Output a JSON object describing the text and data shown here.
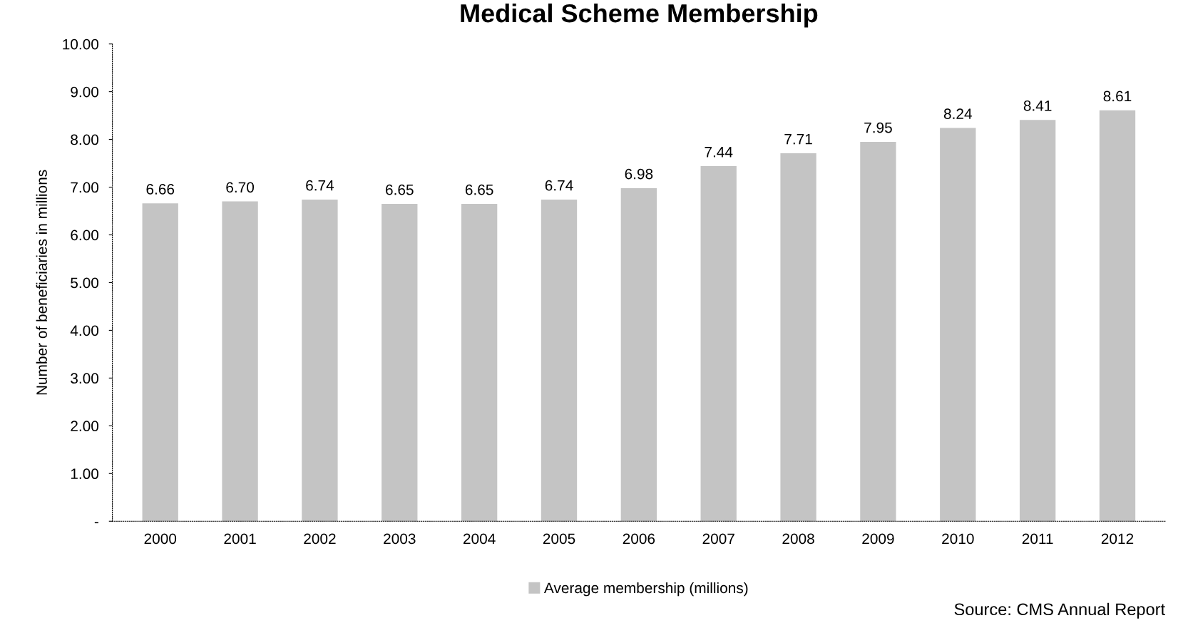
{
  "chart_data": {
    "type": "bar",
    "title": "Medical Scheme Membership",
    "ylabel": "Number of beneficiaries in millions",
    "categories": [
      "2000",
      "2001",
      "2002",
      "2003",
      "2004",
      "2005",
      "2006",
      "2007",
      "2008",
      "2009",
      "2010",
      "2011",
      "2012"
    ],
    "series": [
      {
        "name": "Average membership (millions)",
        "color": "#c4c4c4",
        "values": [
          6.66,
          6.7,
          6.74,
          6.65,
          6.65,
          6.74,
          6.98,
          7.44,
          7.71,
          7.95,
          8.24,
          8.41,
          8.61
        ]
      }
    ],
    "value_labels": [
      "6.66",
      "6.70",
      "6.74",
      "6.65",
      "6.65",
      "6.74",
      "6.98",
      "7.44",
      "7.71",
      "7.95",
      "8.24",
      "8.41",
      "8.61"
    ],
    "ylim": [
      0,
      10
    ],
    "yticks": [
      {
        "value": 0,
        "label": "-"
      },
      {
        "value": 1,
        "label": "1.00"
      },
      {
        "value": 2,
        "label": "2.00"
      },
      {
        "value": 3,
        "label": "3.00"
      },
      {
        "value": 4,
        "label": "4.00"
      },
      {
        "value": 5,
        "label": "5.00"
      },
      {
        "value": 6,
        "label": "6.00"
      },
      {
        "value": 7,
        "label": "7.00"
      },
      {
        "value": 8,
        "label": "8.00"
      },
      {
        "value": 9,
        "label": "9.00"
      },
      {
        "value": 10,
        "label": "10.00"
      }
    ],
    "legend": "bottom",
    "annotations": [
      "Source: CMS Annual Report"
    ]
  }
}
